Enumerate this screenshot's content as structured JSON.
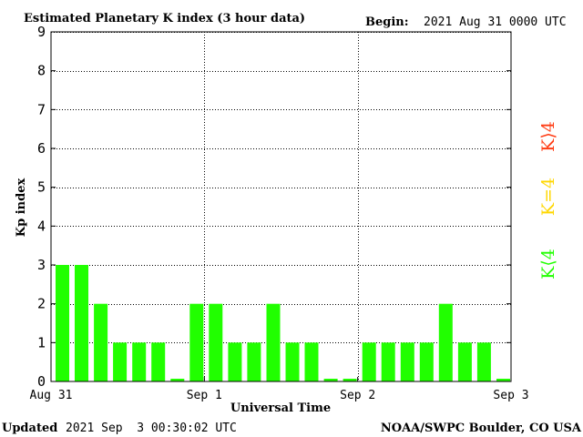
{
  "header": {
    "title": "Estimated Planetary K index (3 hour data)",
    "begin_label": "Begin:",
    "begin_value": "2021 Aug 31 0000 UTC"
  },
  "footer": {
    "updated_label": "Updated",
    "updated_value": "2021 Sep  3 00:30:02 UTC",
    "credit": "NOAA/SWPC Boulder, CO USA"
  },
  "legend": [
    {
      "text": "K⟨4",
      "color": "#21ff00"
    },
    {
      "text": "K=4",
      "color": "#ffd700"
    },
    {
      "text": "K⟩4",
      "color": "#ff3c14"
    }
  ],
  "chart_data": {
    "type": "bar",
    "title": "Estimated Planetary K index (3 hour data)",
    "xlabel": "Universal Time",
    "ylabel": "Kp index",
    "ylim": [
      0,
      9
    ],
    "yticks": [
      0,
      1,
      2,
      3,
      4,
      5,
      6,
      7,
      8,
      9
    ],
    "xtick_labels": [
      "Aug 31",
      "Sep 1",
      "Sep 2",
      "Sep 3"
    ],
    "bar_color": "#21ff00",
    "grid": true,
    "interval_hours": 3,
    "values": [
      3,
      3,
      2,
      1,
      1,
      1,
      0.07,
      2,
      2,
      1,
      1,
      2,
      1,
      1,
      0.07,
      0.07,
      1,
      1,
      1,
      1,
      2,
      1,
      1,
      0.07
    ]
  }
}
